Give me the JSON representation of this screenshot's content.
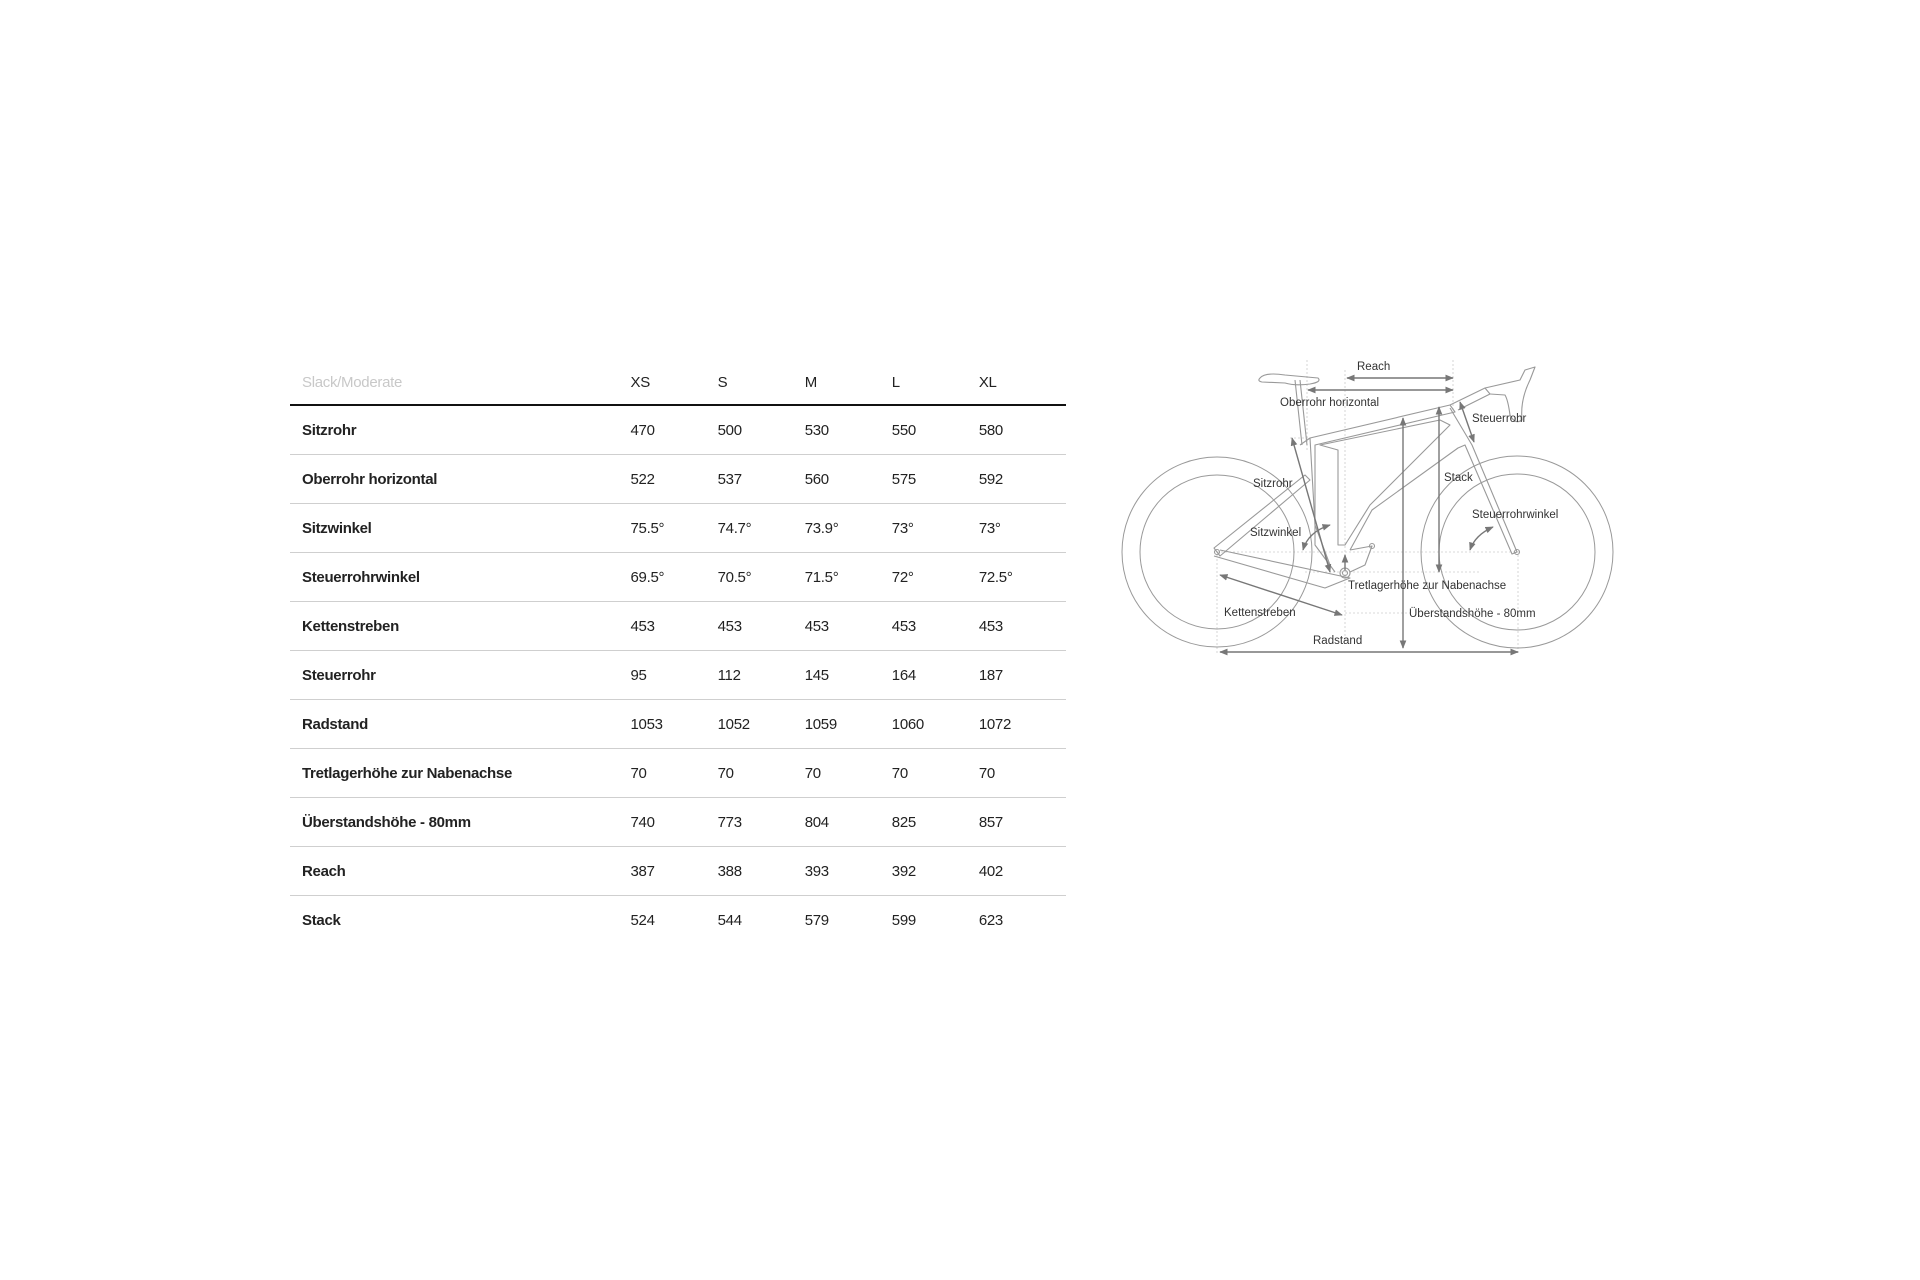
{
  "table": {
    "title": "Slack/Moderate",
    "sizes": [
      "XS",
      "S",
      "M",
      "L",
      "XL"
    ],
    "rows": [
      {
        "label": "Sitzrohr",
        "values": [
          "470",
          "500",
          "530",
          "550",
          "580"
        ]
      },
      {
        "label": "Oberrohr horizontal",
        "values": [
          "522",
          "537",
          "560",
          "575",
          "592"
        ]
      },
      {
        "label": "Sitzwinkel",
        "values": [
          "75.5°",
          "74.7°",
          "73.9°",
          "73°",
          "73°"
        ]
      },
      {
        "label": "Steuerrohrwinkel",
        "values": [
          "69.5°",
          "70.5°",
          "71.5°",
          "72°",
          "72.5°"
        ]
      },
      {
        "label": "Kettenstreben",
        "values": [
          "453",
          "453",
          "453",
          "453",
          "453"
        ]
      },
      {
        "label": "Steuerrohr",
        "values": [
          "95",
          "112",
          "145",
          "164",
          "187"
        ]
      },
      {
        "label": "Radstand",
        "values": [
          "1053",
          "1052",
          "1059",
          "1060",
          "1072"
        ]
      },
      {
        "label": "Tretlagerhöhe zur Nabenachse",
        "values": [
          "70",
          "70",
          "70",
          "70",
          "70"
        ]
      },
      {
        "label": "Überstandshöhe - 80mm",
        "values": [
          "740",
          "773",
          "804",
          "825",
          "857"
        ]
      },
      {
        "label": "Reach",
        "values": [
          "387",
          "388",
          "393",
          "392",
          "402"
        ]
      },
      {
        "label": "Stack",
        "values": [
          "524",
          "544",
          "579",
          "599",
          "623"
        ]
      }
    ]
  },
  "diagram": {
    "labels": {
      "reach": "Reach",
      "oberrohr": "Oberrohr horizontal",
      "steuerrohr": "Steuerrohr",
      "sitzrohr": "Sitzrohr",
      "stack": "Stack",
      "steuerrohrwinkel": "Steuerrohrwinkel",
      "sitzwinkel": "Sitzwinkel",
      "tretlager": "Tretlagerhöhe zur Nabenachse",
      "kettenstreben": "Kettenstreben",
      "ueberstand": "Überstandshöhe - 80mm",
      "radstand": "Radstand"
    }
  }
}
